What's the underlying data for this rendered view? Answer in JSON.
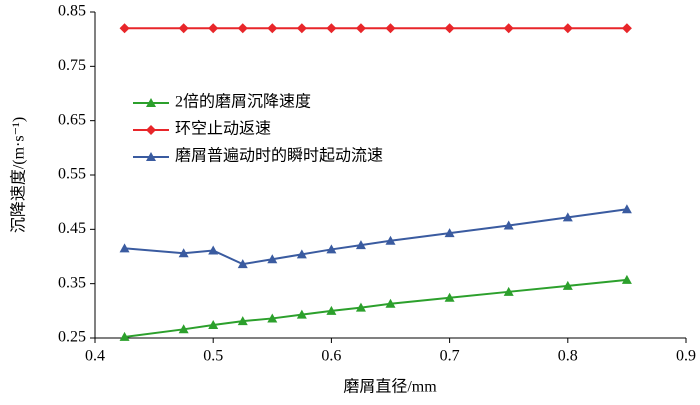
{
  "chart_data": {
    "type": "line",
    "x_label": "磨屑直径/mm",
    "y_label": "沉降速度/(m·s⁻¹)",
    "xlim": [
      0.4,
      0.9
    ],
    "xticks": [
      0.4,
      0.5,
      0.6,
      0.7,
      0.8,
      0.9
    ],
    "ylim": [
      0.25,
      0.85
    ],
    "yticks": [
      0.25,
      0.35,
      0.45,
      0.55,
      0.65,
      0.75,
      0.85
    ],
    "legend_position": "upper left",
    "series": [
      {
        "name": "2倍的磨屑沉降速度",
        "color": "#2ca02c",
        "marker": "triangle",
        "x": [
          0.425,
          0.475,
          0.5,
          0.525,
          0.55,
          0.575,
          0.6,
          0.625,
          0.65,
          0.7,
          0.75,
          0.8,
          0.85
        ],
        "values": [
          0.252,
          0.266,
          0.274,
          0.281,
          0.286,
          0.293,
          0.3,
          0.306,
          0.313,
          0.324,
          0.335,
          0.346,
          0.357
        ]
      },
      {
        "name": "环空止动返速",
        "color": "#e8262a",
        "marker": "diamond",
        "x": [
          0.425,
          0.475,
          0.5,
          0.525,
          0.55,
          0.575,
          0.6,
          0.625,
          0.65,
          0.7,
          0.75,
          0.8,
          0.85
        ],
        "values": [
          0.82,
          0.82,
          0.82,
          0.82,
          0.82,
          0.82,
          0.82,
          0.82,
          0.82,
          0.82,
          0.82,
          0.82,
          0.82
        ]
      },
      {
        "name": "磨屑普遍动时的瞬时起动流速",
        "color": "#3a5ba0",
        "marker": "triangle",
        "x": [
          0.425,
          0.475,
          0.5,
          0.525,
          0.55,
          0.575,
          0.6,
          0.625,
          0.65,
          0.7,
          0.75,
          0.8,
          0.85
        ],
        "values": [
          0.415,
          0.406,
          0.411,
          0.386,
          0.395,
          0.404,
          0.413,
          0.421,
          0.429,
          0.443,
          0.457,
          0.472,
          0.487
        ]
      }
    ]
  }
}
